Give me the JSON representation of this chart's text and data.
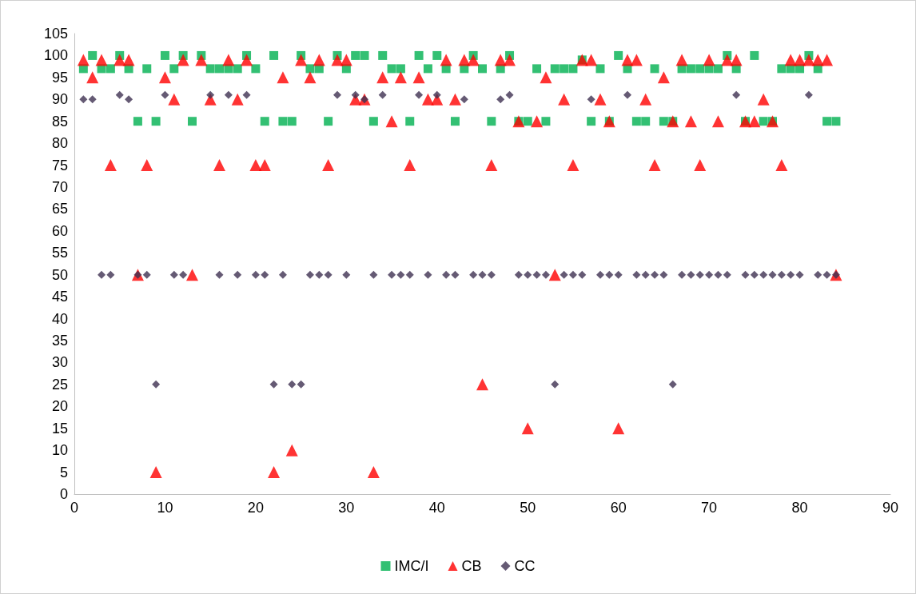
{
  "chart_data": {
    "type": "scatter",
    "x": [
      1,
      2,
      3,
      4,
      5,
      6,
      7,
      8,
      9,
      10,
      11,
      12,
      13,
      14,
      15,
      16,
      17,
      18,
      19,
      20,
      21,
      22,
      23,
      24,
      25,
      26,
      27,
      28,
      29,
      30,
      31,
      32,
      33,
      34,
      35,
      36,
      37,
      38,
      39,
      40,
      41,
      42,
      43,
      44,
      45,
      46,
      47,
      48,
      49,
      50,
      51,
      52,
      53,
      54,
      55,
      56,
      57,
      58,
      59,
      60,
      61,
      62,
      63,
      64,
      65,
      66,
      67,
      68,
      69,
      70,
      71,
      72,
      73,
      74,
      75,
      76,
      77,
      78,
      79,
      80,
      81,
      82,
      83,
      84
    ],
    "series": [
      {
        "name": "IMC/I",
        "color": "#00b050",
        "marker": "square",
        "values": [
          97,
          100,
          97,
          97,
          100,
          97,
          85,
          97,
          85,
          100,
          97,
          100,
          85,
          100,
          97,
          97,
          97,
          97,
          100,
          97,
          85,
          100,
          85,
          85,
          100,
          97,
          97,
          85,
          100,
          97,
          100,
          100,
          85,
          100,
          97,
          97,
          85,
          100,
          97,
          100,
          97,
          85,
          97,
          100,
          97,
          85,
          97,
          100,
          85,
          85,
          97,
          85,
          97,
          97,
          97,
          99,
          85,
          97,
          85,
          100,
          97,
          85,
          85,
          97,
          85,
          85,
          97,
          97,
          97,
          97,
          97,
          100,
          97,
          85,
          100,
          85,
          85,
          97,
          97,
          97,
          100,
          97,
          85,
          85
        ]
      },
      {
        "name": "CB",
        "color": "#ff0000",
        "marker": "triangle",
        "values": [
          99,
          95,
          99,
          75,
          99,
          99,
          50,
          75,
          5,
          95,
          90,
          99,
          50,
          99,
          90,
          75,
          99,
          90,
          99,
          75,
          75,
          5,
          95,
          10,
          99,
          95,
          99,
          75,
          99,
          99,
          90,
          90,
          5,
          95,
          85,
          95,
          75,
          95,
          90,
          90,
          99,
          90,
          99,
          99,
          25,
          75,
          99,
          99,
          85,
          15,
          85,
          95,
          50,
          90,
          75,
          99,
          99,
          90,
          85,
          15,
          99,
          99,
          90,
          75,
          95,
          85,
          99,
          85,
          75,
          99,
          85,
          99,
          99,
          85,
          85,
          90,
          85,
          75,
          99,
          99,
          99,
          99,
          99,
          50
        ]
      },
      {
        "name": "CC",
        "color": "#3f3151",
        "marker": "diamond",
        "values": [
          90,
          90,
          50,
          50,
          91,
          90,
          50,
          50,
          25,
          91,
          50,
          50,
          null,
          null,
          91,
          50,
          91,
          50,
          91,
          50,
          50,
          25,
          50,
          25,
          25,
          50,
          50,
          50,
          91,
          50,
          91,
          90,
          50,
          91,
          50,
          50,
          50,
          91,
          50,
          91,
          50,
          50,
          90,
          50,
          50,
          50,
          90,
          91,
          50,
          50,
          50,
          50,
          25,
          50,
          50,
          50,
          90,
          50,
          50,
          50,
          91,
          50,
          50,
          50,
          50,
          25,
          50,
          50,
          50,
          50,
          50,
          50,
          91,
          50,
          50,
          50,
          50,
          50,
          50,
          50,
          91,
          50,
          50,
          50
        ]
      }
    ],
    "xlim": [
      0,
      90
    ],
    "xticks": [
      0,
      10,
      20,
      30,
      40,
      50,
      60,
      70,
      80,
      90
    ],
    "ylim": [
      0,
      105
    ],
    "yticks": [
      0,
      5,
      10,
      15,
      20,
      25,
      30,
      35,
      40,
      45,
      50,
      55,
      60,
      65,
      70,
      75,
      80,
      85,
      90,
      95,
      100,
      105
    ],
    "grid": false,
    "legend": "bottom"
  }
}
